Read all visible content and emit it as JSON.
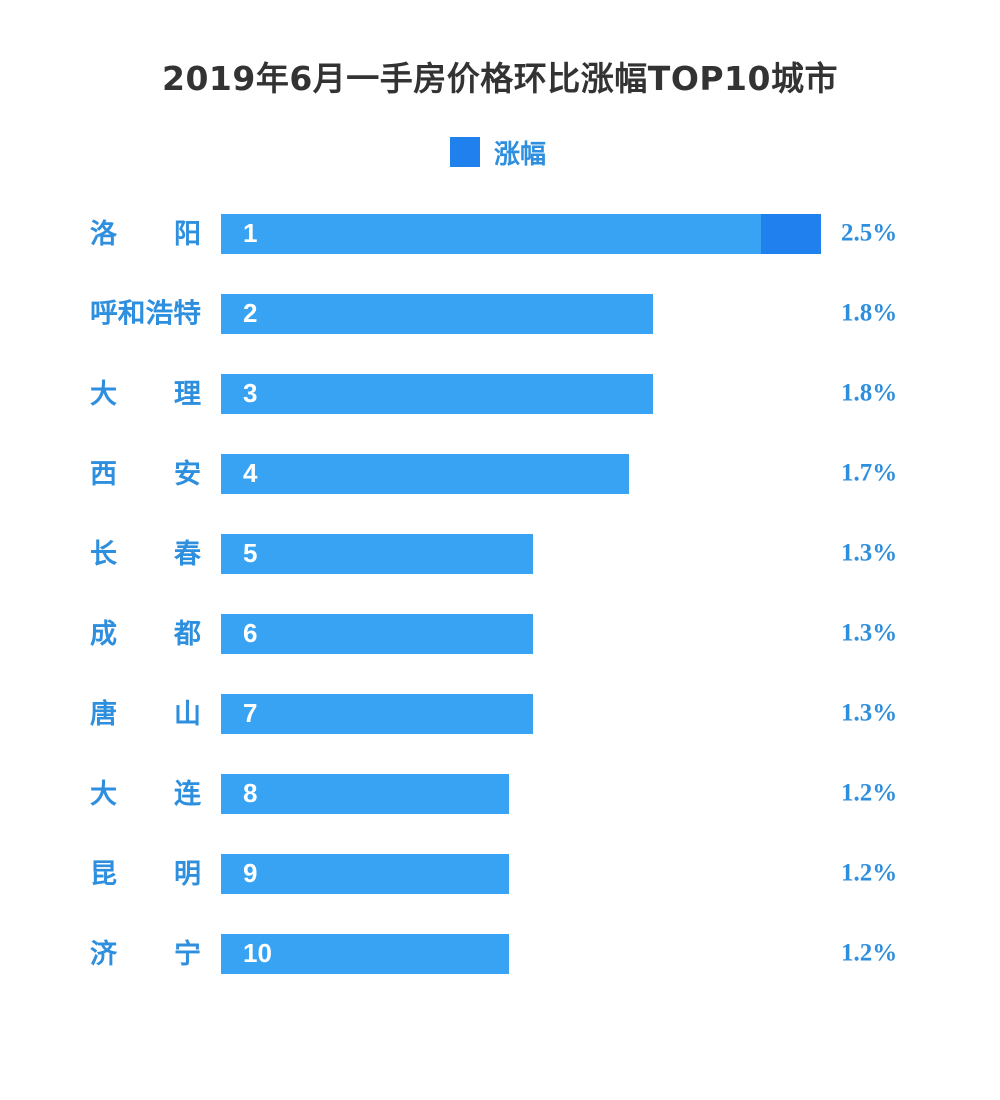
{
  "colors": {
    "bar_base": "#38a3f2",
    "bar_highlight": "#2080ee",
    "city_label": "#2e8fde",
    "value_label": "#2e8fde",
    "legend_swatch": "#2080ee",
    "legend_label": "#2e8fde",
    "rank_text": "#ffffff",
    "title": "#333333"
  },
  "chart_data": {
    "type": "bar",
    "orientation": "horizontal",
    "title": "2019年6月一手房价格环比涨幅TOP10城市",
    "legend": {
      "label": "涨幅",
      "placement": "top-center"
    },
    "series": [
      {
        "name": "涨幅",
        "values": [
          2.5,
          1.8,
          1.8,
          1.7,
          1.3,
          1.3,
          1.3,
          1.2,
          1.2,
          1.2
        ]
      }
    ],
    "categories": [
      "洛阳",
      "呼和浩特",
      "大理",
      "西安",
      "长春",
      "成都",
      "唐山",
      "大连",
      "昆明",
      "济宁"
    ],
    "ranks": [
      "1",
      "2",
      "3",
      "4",
      "5",
      "6",
      "7",
      "8",
      "9",
      "10"
    ],
    "value_labels": [
      "2.5%",
      "1.8%",
      "1.8%",
      "1.7%",
      "1.3%",
      "1.3%",
      "1.3%",
      "1.2%",
      "1.2%",
      "1.2%"
    ],
    "xlim": [
      0,
      2.5
    ],
    "grid": false
  }
}
